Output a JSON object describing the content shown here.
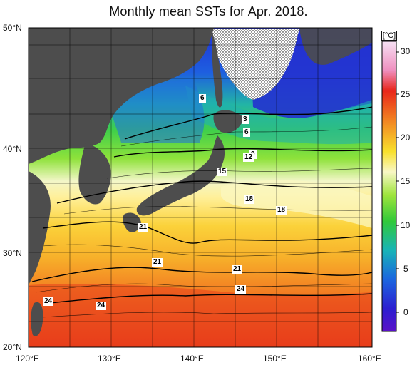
{
  "title": "Monthly mean SSTs for Apr. 2018.",
  "lat_labels": [
    "50°N",
    "40°N",
    "30°N",
    "20°N"
  ],
  "lon_labels": [
    "120°E",
    "130°E",
    "140°E",
    "150°E",
    "160°E"
  ],
  "colorbar": {
    "unit": "[°C]",
    "ticks": [
      "30",
      "25",
      "20",
      "15",
      "10",
      "5",
      "0"
    ],
    "range": [
      -3,
      32
    ]
  },
  "isotherm_labels": [
    "6",
    "3",
    "6",
    "9",
    "12",
    "15",
    "18",
    "18",
    "21",
    "21",
    "21",
    "24",
    "24",
    "24"
  ],
  "colors": {
    "land": "#4d4d4d",
    "ice_hatch": "#000000",
    "cold": "#2f1bc9",
    "warm": "#e82a1a"
  }
}
